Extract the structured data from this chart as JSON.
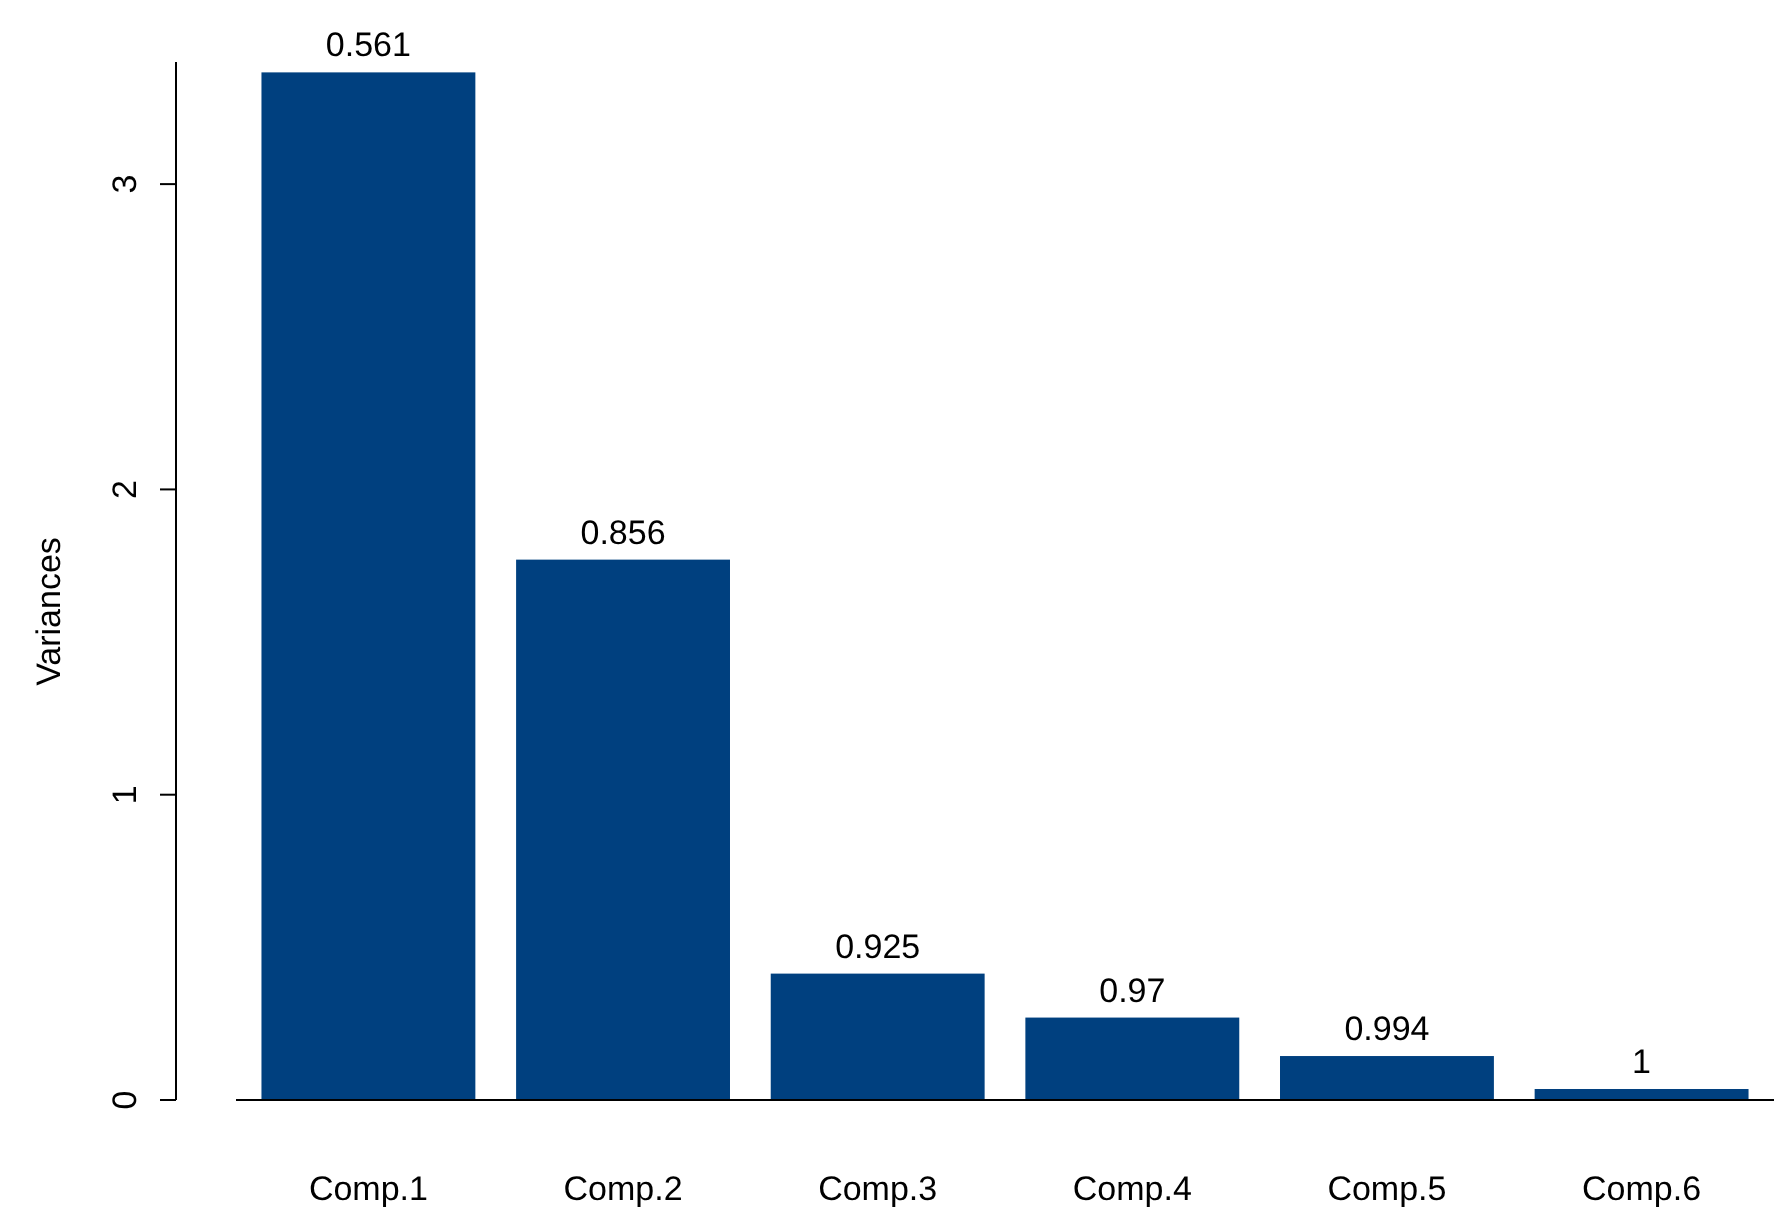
{
  "chart_data": {
    "type": "bar",
    "ylabel": "Variances",
    "categories": [
      "Comp.1",
      "Comp.2",
      "Comp.3",
      "Comp.4",
      "Comp.5",
      "Comp.6"
    ],
    "values": [
      3.366,
      1.77,
      0.414,
      0.27,
      0.144,
      0.036
    ],
    "color": "#00407f",
    "ylim": [
      0,
      3.4
    ],
    "yticks": [
      0,
      1,
      2,
      3
    ],
    "annotations": [
      {
        "text": "0.561",
        "x": "Comp.1",
        "y": 3.366
      },
      {
        "text": "0.856",
        "x": "Comp.2",
        "y": 1.77
      },
      {
        "text": "0.925",
        "x": "Comp.3",
        "y": 0.414
      },
      {
        "text": "0.97",
        "x": "Comp.4",
        "y": 0.27
      },
      {
        "text": "0.994",
        "x": "Comp.5",
        "y": 0.144
      },
      {
        "text": "1",
        "x": "Comp.6",
        "y": 0.036
      }
    ]
  }
}
